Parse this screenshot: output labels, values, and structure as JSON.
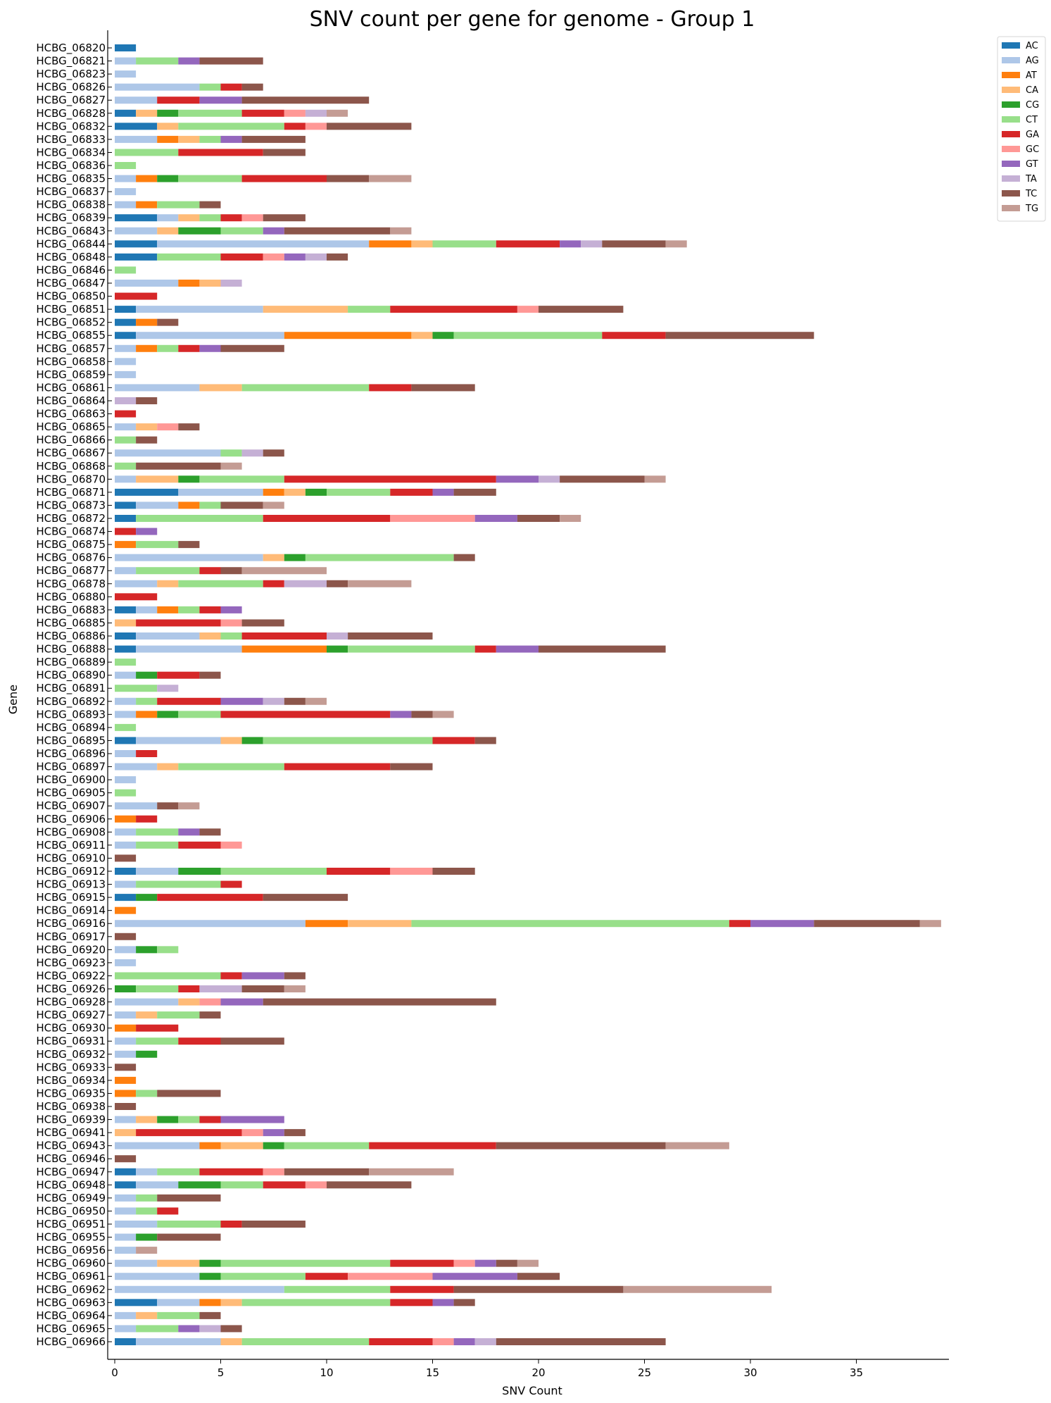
{
  "chart_data": {
    "type": "bar",
    "orientation": "horizontal",
    "stacked": true,
    "title": "SNV count per gene for genome - Group 1",
    "xlabel": "SNV Count",
    "ylabel": "Gene",
    "xlim": [
      0,
      39.5
    ],
    "xticks": [
      0,
      5,
      10,
      15,
      20,
      25,
      30,
      35
    ],
    "grid": false,
    "legend_position": "top-right outside",
    "series": [
      {
        "name": "AC",
        "color": "#1f77b4"
      },
      {
        "name": "AG",
        "color": "#aec7e8"
      },
      {
        "name": "AT",
        "color": "#ff7f0e"
      },
      {
        "name": "CA",
        "color": "#ffbb78"
      },
      {
        "name": "CG",
        "color": "#2ca02c"
      },
      {
        "name": "CT",
        "color": "#98df8a"
      },
      {
        "name": "GA",
        "color": "#d62728"
      },
      {
        "name": "GC",
        "color": "#ff9896"
      },
      {
        "name": "GT",
        "color": "#9467bd"
      },
      {
        "name": "TA",
        "color": "#c5b0d5"
      },
      {
        "name": "TC",
        "color": "#8c564b"
      },
      {
        "name": "TG",
        "color": "#c49c94"
      }
    ],
    "categories": [
      "HCBG_06820",
      "HCBG_06821",
      "HCBG_06823",
      "HCBG_06826",
      "HCBG_06827",
      "HCBG_06828",
      "HCBG_06832",
      "HCBG_06833",
      "HCBG_06834",
      "HCBG_06836",
      "HCBG_06835",
      "HCBG_06837",
      "HCBG_06838",
      "HCBG_06839",
      "HCBG_06843",
      "HCBG_06844",
      "HCBG_06848",
      "HCBG_06846",
      "HCBG_06847",
      "HCBG_06850",
      "HCBG_06851",
      "HCBG_06852",
      "HCBG_06855",
      "HCBG_06857",
      "HCBG_06858",
      "HCBG_06859",
      "HCBG_06861",
      "HCBG_06864",
      "HCBG_06863",
      "HCBG_06865",
      "HCBG_06866",
      "HCBG_06867",
      "HCBG_06868",
      "HCBG_06870",
      "HCBG_06871",
      "HCBG_06873",
      "HCBG_06872",
      "HCBG_06874",
      "HCBG_06875",
      "HCBG_06876",
      "HCBG_06877",
      "HCBG_06878",
      "HCBG_06880",
      "HCBG_06883",
      "HCBG_06885",
      "HCBG_06886",
      "HCBG_06888",
      "HCBG_06889",
      "HCBG_06890",
      "HCBG_06891",
      "HCBG_06892",
      "HCBG_06893",
      "HCBG_06894",
      "HCBG_06895",
      "HCBG_06896",
      "HCBG_06897",
      "HCBG_06900",
      "HCBG_06905",
      "HCBG_06907",
      "HCBG_06906",
      "HCBG_06908",
      "HCBG_06911",
      "HCBG_06910",
      "HCBG_06912",
      "HCBG_06913",
      "HCBG_06915",
      "HCBG_06914",
      "HCBG_06916",
      "HCBG_06917",
      "HCBG_06920",
      "HCBG_06923",
      "HCBG_06922",
      "HCBG_06926",
      "HCBG_06928",
      "HCBG_06927",
      "HCBG_06930",
      "HCBG_06931",
      "HCBG_06932",
      "HCBG_06933",
      "HCBG_06934",
      "HCBG_06935",
      "HCBG_06938",
      "HCBG_06939",
      "HCBG_06941",
      "HCBG_06943",
      "HCBG_06946",
      "HCBG_06947",
      "HCBG_06948",
      "HCBG_06949",
      "HCBG_06950",
      "HCBG_06951",
      "HCBG_06955",
      "HCBG_06956",
      "HCBG_06960",
      "HCBG_06961",
      "HCBG_06962",
      "HCBG_06963",
      "HCBG_06964",
      "HCBG_06965",
      "HCBG_06966"
    ],
    "values": [
      [
        1,
        0,
        0,
        0,
        0,
        0,
        0,
        0,
        0,
        0,
        0,
        0
      ],
      [
        0,
        1,
        0,
        0,
        0,
        2,
        0,
        0,
        1,
        0,
        3,
        0
      ],
      [
        0,
        1,
        0,
        0,
        0,
        0,
        0,
        0,
        0,
        0,
        0,
        0
      ],
      [
        0,
        4,
        0,
        0,
        0,
        1,
        1,
        0,
        0,
        0,
        1,
        0
      ],
      [
        0,
        2,
        0,
        0,
        0,
        0,
        2,
        0,
        2,
        0,
        6,
        0
      ],
      [
        1,
        0,
        0,
        1,
        1,
        3,
        2,
        1,
        0,
        1,
        0,
        1
      ],
      [
        2,
        0,
        0,
        1,
        0,
        5,
        1,
        1,
        0,
        0,
        4,
        0
      ],
      [
        0,
        2,
        1,
        1,
        0,
        1,
        0,
        0,
        1,
        0,
        3,
        0
      ],
      [
        0,
        0,
        0,
        0,
        0,
        3,
        4,
        0,
        0,
        0,
        2,
        0
      ],
      [
        0,
        0,
        0,
        0,
        0,
        1,
        0,
        0,
        0,
        0,
        0,
        0
      ],
      [
        0,
        1,
        1,
        0,
        1,
        3,
        4,
        0,
        0,
        0,
        2,
        2
      ],
      [
        0,
        1,
        0,
        0,
        0,
        0,
        0,
        0,
        0,
        0,
        0,
        0
      ],
      [
        0,
        1,
        1,
        0,
        0,
        2,
        0,
        0,
        0,
        0,
        1,
        0
      ],
      [
        2,
        1,
        0,
        1,
        0,
        1,
        1,
        1,
        0,
        0,
        2,
        0
      ],
      [
        0,
        2,
        0,
        1,
        2,
        2,
        0,
        0,
        1,
        0,
        5,
        1
      ],
      [
        2,
        10,
        2,
        1,
        0,
        3,
        3,
        0,
        1,
        1,
        3,
        1
      ],
      [
        2,
        0,
        0,
        0,
        0,
        3,
        2,
        1,
        1,
        1,
        1,
        0
      ],
      [
        0,
        0,
        0,
        0,
        0,
        1,
        0,
        0,
        0,
        0,
        0,
        0
      ],
      [
        0,
        3,
        1,
        1,
        0,
        0,
        0,
        0,
        0,
        1,
        0,
        0
      ],
      [
        0,
        0,
        0,
        0,
        0,
        0,
        2,
        0,
        0,
        0,
        0,
        0
      ],
      [
        1,
        6,
        0,
        4,
        0,
        2,
        6,
        1,
        0,
        0,
        4,
        0
      ],
      [
        1,
        0,
        1,
        0,
        0,
        0,
        0,
        0,
        0,
        0,
        1,
        0
      ],
      [
        1,
        7,
        6,
        1,
        1,
        7,
        3,
        0,
        0,
        0,
        7,
        0
      ],
      [
        0,
        1,
        1,
        0,
        0,
        1,
        1,
        0,
        1,
        0,
        3,
        0
      ],
      [
        0,
        1,
        0,
        0,
        0,
        0,
        0,
        0,
        0,
        0,
        0,
        0
      ],
      [
        0,
        1,
        0,
        0,
        0,
        0,
        0,
        0,
        0,
        0,
        0,
        0
      ],
      [
        0,
        4,
        0,
        2,
        0,
        6,
        2,
        0,
        0,
        0,
        3,
        0
      ],
      [
        0,
        0,
        0,
        0,
        0,
        0,
        0,
        0,
        0,
        1,
        1,
        0
      ],
      [
        0,
        0,
        0,
        0,
        0,
        0,
        1,
        0,
        0,
        0,
        0,
        0
      ],
      [
        0,
        1,
        0,
        1,
        0,
        0,
        0,
        1,
        0,
        0,
        1,
        0
      ],
      [
        0,
        0,
        0,
        0,
        0,
        1,
        0,
        0,
        0,
        0,
        1,
        0
      ],
      [
        0,
        5,
        0,
        0,
        0,
        1,
        0,
        0,
        0,
        1,
        1,
        0
      ],
      [
        0,
        0,
        0,
        0,
        0,
        1,
        0,
        0,
        0,
        0,
        4,
        1
      ],
      [
        0,
        1,
        0,
        2,
        1,
        4,
        10,
        0,
        2,
        1,
        4,
        1
      ],
      [
        3,
        4,
        1,
        1,
        1,
        3,
        2,
        0,
        1,
        0,
        2,
        0
      ],
      [
        1,
        2,
        1,
        0,
        0,
        1,
        0,
        0,
        0,
        0,
        2,
        1
      ],
      [
        1,
        0,
        0,
        0,
        0,
        6,
        6,
        4,
        2,
        0,
        2,
        1
      ],
      [
        0,
        0,
        0,
        0,
        0,
        0,
        1,
        0,
        1,
        0,
        0,
        0
      ],
      [
        0,
        0,
        1,
        0,
        0,
        2,
        0,
        0,
        0,
        0,
        1,
        0
      ],
      [
        0,
        7,
        0,
        1,
        1,
        7,
        0,
        0,
        0,
        0,
        1,
        0
      ],
      [
        0,
        1,
        0,
        0,
        0,
        3,
        1,
        0,
        0,
        0,
        1,
        4
      ],
      [
        0,
        2,
        0,
        1,
        0,
        4,
        1,
        0,
        0,
        2,
        1,
        3
      ],
      [
        0,
        0,
        0,
        0,
        0,
        0,
        2,
        0,
        0,
        0,
        0,
        0
      ],
      [
        1,
        1,
        1,
        0,
        0,
        1,
        1,
        0,
        1,
        0,
        0,
        0
      ],
      [
        0,
        0,
        0,
        1,
        0,
        0,
        4,
        1,
        0,
        0,
        2,
        0
      ],
      [
        1,
        3,
        0,
        1,
        0,
        1,
        4,
        0,
        0,
        1,
        4,
        0
      ],
      [
        1,
        5,
        4,
        0,
        1,
        6,
        1,
        0,
        2,
        0,
        6,
        0
      ],
      [
        0,
        0,
        0,
        0,
        0,
        1,
        0,
        0,
        0,
        0,
        0,
        0
      ],
      [
        0,
        1,
        0,
        0,
        1,
        0,
        2,
        0,
        0,
        0,
        1,
        0
      ],
      [
        0,
        0,
        0,
        0,
        0,
        2,
        0,
        0,
        0,
        1,
        0,
        0
      ],
      [
        0,
        1,
        0,
        0,
        0,
        1,
        3,
        0,
        2,
        1,
        1,
        1
      ],
      [
        0,
        1,
        1,
        0,
        1,
        2,
        8,
        0,
        1,
        0,
        1,
        1
      ],
      [
        0,
        0,
        0,
        0,
        0,
        1,
        0,
        0,
        0,
        0,
        0,
        0
      ],
      [
        1,
        4,
        0,
        1,
        1,
        8,
        2,
        0,
        0,
        0,
        1,
        0
      ],
      [
        0,
        1,
        0,
        0,
        0,
        0,
        1,
        0,
        0,
        0,
        0,
        0
      ],
      [
        0,
        2,
        0,
        1,
        0,
        5,
        5,
        0,
        0,
        0,
        2,
        0
      ],
      [
        0,
        1,
        0,
        0,
        0,
        0,
        0,
        0,
        0,
        0,
        0,
        0
      ],
      [
        0,
        0,
        0,
        0,
        0,
        1,
        0,
        0,
        0,
        0,
        0,
        0
      ],
      [
        0,
        2,
        0,
        0,
        0,
        0,
        0,
        0,
        0,
        0,
        1,
        1
      ],
      [
        0,
        0,
        1,
        0,
        0,
        0,
        1,
        0,
        0,
        0,
        0,
        0
      ],
      [
        0,
        1,
        0,
        0,
        0,
        2,
        0,
        0,
        1,
        0,
        1,
        0
      ],
      [
        0,
        1,
        0,
        0,
        0,
        2,
        2,
        1,
        0,
        0,
        0,
        0
      ],
      [
        0,
        0,
        0,
        0,
        0,
        0,
        0,
        0,
        0,
        0,
        1,
        0
      ],
      [
        1,
        2,
        0,
        0,
        2,
        5,
        3,
        2,
        0,
        0,
        2,
        0
      ],
      [
        0,
        1,
        0,
        0,
        0,
        4,
        1,
        0,
        0,
        0,
        0,
        0
      ],
      [
        1,
        0,
        0,
        0,
        1,
        0,
        5,
        0,
        0,
        0,
        4,
        0
      ],
      [
        0,
        0,
        1,
        0,
        0,
        0,
        0,
        0,
        0,
        0,
        0,
        0
      ],
      [
        0,
        9,
        2,
        3,
        0,
        15,
        1,
        0,
        3,
        0,
        5,
        1
      ],
      [
        0,
        0,
        0,
        0,
        0,
        0,
        0,
        0,
        0,
        0,
        1,
        0
      ],
      [
        0,
        1,
        0,
        0,
        1,
        1,
        0,
        0,
        0,
        0,
        0,
        0
      ],
      [
        0,
        1,
        0,
        0,
        0,
        0,
        0,
        0,
        0,
        0,
        0,
        0
      ],
      [
        0,
        0,
        0,
        0,
        0,
        5,
        1,
        0,
        2,
        0,
        1,
        0
      ],
      [
        0,
        0,
        0,
        0,
        1,
        2,
        1,
        0,
        0,
        2,
        2,
        1
      ],
      [
        0,
        3,
        0,
        1,
        0,
        0,
        0,
        1,
        2,
        0,
        11,
        0
      ],
      [
        0,
        1,
        0,
        1,
        0,
        2,
        0,
        0,
        0,
        0,
        1,
        0
      ],
      [
        0,
        0,
        1,
        0,
        0,
        0,
        2,
        0,
        0,
        0,
        0,
        0
      ],
      [
        0,
        1,
        0,
        0,
        0,
        2,
        2,
        0,
        0,
        0,
        3,
        0
      ],
      [
        0,
        1,
        0,
        0,
        1,
        0,
        0,
        0,
        0,
        0,
        0,
        0
      ],
      [
        0,
        0,
        0,
        0,
        0,
        0,
        0,
        0,
        0,
        0,
        1,
        0
      ],
      [
        0,
        0,
        1,
        0,
        0,
        0,
        0,
        0,
        0,
        0,
        0,
        0
      ],
      [
        0,
        0,
        1,
        0,
        0,
        1,
        0,
        0,
        0,
        0,
        3,
        0
      ],
      [
        0,
        0,
        0,
        0,
        0,
        0,
        0,
        0,
        0,
        0,
        1,
        0
      ],
      [
        0,
        1,
        0,
        1,
        1,
        1,
        1,
        0,
        3,
        0,
        0,
        0
      ],
      [
        0,
        0,
        0,
        1,
        0,
        0,
        5,
        1,
        1,
        0,
        1,
        0
      ],
      [
        0,
        4,
        1,
        2,
        1,
        4,
        6,
        0,
        0,
        0,
        8,
        3
      ],
      [
        0,
        0,
        0,
        0,
        0,
        0,
        0,
        0,
        0,
        0,
        1,
        0
      ],
      [
        1,
        1,
        0,
        0,
        0,
        2,
        3,
        1,
        0,
        0,
        4,
        4
      ],
      [
        1,
        2,
        0,
        0,
        2,
        2,
        2,
        1,
        0,
        0,
        4,
        0
      ],
      [
        0,
        1,
        0,
        0,
        0,
        1,
        0,
        0,
        0,
        0,
        3,
        0
      ],
      [
        0,
        1,
        0,
        0,
        0,
        1,
        1,
        0,
        0,
        0,
        0,
        0
      ],
      [
        0,
        2,
        0,
        0,
        0,
        3,
        1,
        0,
        0,
        0,
        3,
        0
      ],
      [
        0,
        1,
        0,
        0,
        1,
        0,
        0,
        0,
        0,
        0,
        3,
        0
      ],
      [
        0,
        1,
        0,
        0,
        0,
        0,
        0,
        0,
        0,
        0,
        0,
        1
      ],
      [
        0,
        2,
        0,
        2,
        1,
        8,
        3,
        1,
        1,
        0,
        1,
        1
      ],
      [
        0,
        4,
        0,
        0,
        1,
        4,
        2,
        4,
        4,
        0,
        2,
        0
      ],
      [
        0,
        8,
        0,
        0,
        0,
        5,
        3,
        0,
        0,
        0,
        8,
        7
      ],
      [
        2,
        2,
        1,
        1,
        0,
        7,
        2,
        0,
        1,
        0,
        1,
        0
      ],
      [
        0,
        1,
        0,
        1,
        0,
        2,
        0,
        0,
        0,
        0,
        1,
        0
      ],
      [
        0,
        1,
        0,
        0,
        0,
        2,
        0,
        0,
        1,
        1,
        1,
        0
      ],
      [
        1,
        4,
        0,
        1,
        0,
        6,
        3,
        1,
        1,
        1,
        8,
        0
      ]
    ]
  }
}
